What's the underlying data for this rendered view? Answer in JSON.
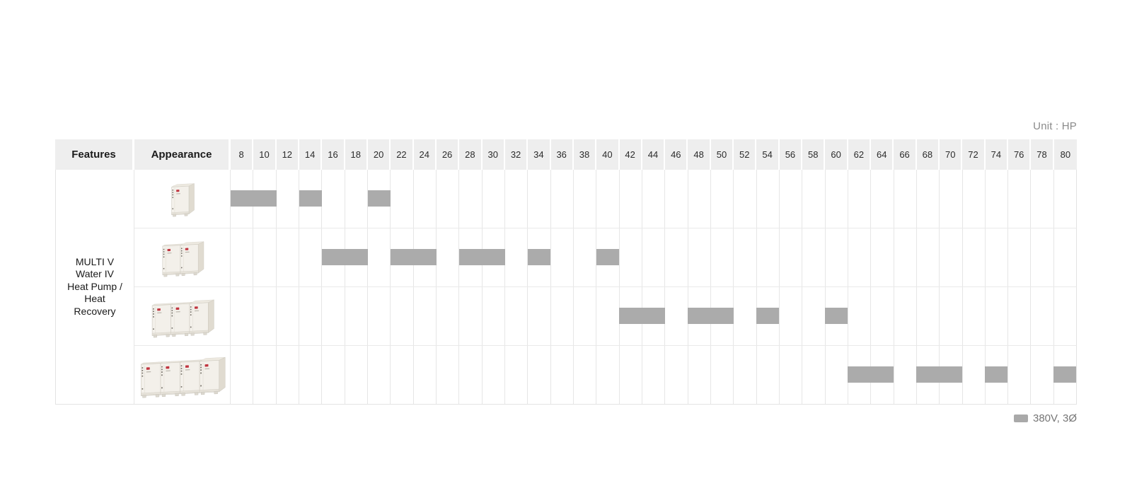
{
  "unit_note": "Unit : HP",
  "colors": {
    "bar": "#ababab",
    "header_bg": "#eeeeee",
    "grid_line": "#e6e6e6",
    "legend_swatch": "#a9a9a9",
    "lg_logo_red": "#c03540"
  },
  "legend": {
    "label": "380V, 3Ø",
    "swatch_color": "#a9a9a9"
  },
  "table": {
    "features_header": "Features",
    "appearance_header": "Appearance",
    "feature_group_label": "MULTI V\nWater IV\nHeat Pump /\nHeat\nRecovery",
    "hp_columns": [
      8,
      10,
      12,
      14,
      16,
      18,
      20,
      22,
      24,
      26,
      28,
      30,
      32,
      34,
      36,
      38,
      40,
      42,
      44,
      46,
      48,
      50,
      52,
      54,
      56,
      58,
      60,
      62,
      64,
      66,
      68,
      70,
      72,
      74,
      76,
      78,
      80
    ],
    "rows": [
      {
        "units": 1,
        "bars": [
          [
            8,
            10
          ],
          [
            14,
            14
          ],
          [
            20,
            20
          ]
        ]
      },
      {
        "units": 2,
        "bars": [
          [
            16,
            18
          ],
          [
            22,
            24
          ],
          [
            28,
            30
          ],
          [
            34,
            34
          ],
          [
            40,
            40
          ]
        ]
      },
      {
        "units": 3,
        "bars": [
          [
            42,
            44
          ],
          [
            48,
            50
          ],
          [
            54,
            54
          ],
          [
            60,
            60
          ]
        ]
      },
      {
        "units": 4,
        "bars": [
          [
            62,
            64
          ],
          [
            68,
            70
          ],
          [
            74,
            74
          ],
          [
            80,
            80
          ]
        ]
      }
    ]
  },
  "chart_data": {
    "type": "table",
    "title": "MULTI V Water IV Heat Pump / Heat Recovery capacity lineup",
    "unit": "HP",
    "unit_note": "Unit : HP",
    "columns_hp": [
      8,
      10,
      12,
      14,
      16,
      18,
      20,
      22,
      24,
      26,
      28,
      30,
      32,
      34,
      36,
      38,
      40,
      42,
      44,
      46,
      48,
      50,
      52,
      54,
      56,
      58,
      60,
      62,
      64,
      66,
      68,
      70,
      72,
      74,
      76,
      78,
      80
    ],
    "row_group_label": "MULTI V Water IV Heat Pump / Heat Recovery",
    "legend": [
      {
        "label": "380V, 3Ø",
        "color": "#ababab"
      }
    ],
    "rows": [
      {
        "appearance_units": 1,
        "hp_ranges": [
          [
            8,
            10
          ],
          [
            14,
            14
          ],
          [
            20,
            20
          ]
        ],
        "hp_values": [
          8,
          10,
          14,
          20
        ]
      },
      {
        "appearance_units": 2,
        "hp_ranges": [
          [
            16,
            18
          ],
          [
            22,
            24
          ],
          [
            28,
            30
          ],
          [
            34,
            34
          ],
          [
            40,
            40
          ]
        ],
        "hp_values": [
          16,
          18,
          22,
          24,
          28,
          30,
          34,
          40
        ]
      },
      {
        "appearance_units": 3,
        "hp_ranges": [
          [
            42,
            44
          ],
          [
            48,
            50
          ],
          [
            54,
            54
          ],
          [
            60,
            60
          ]
        ],
        "hp_values": [
          42,
          44,
          48,
          50,
          54,
          60
        ]
      },
      {
        "appearance_units": 4,
        "hp_ranges": [
          [
            62,
            64
          ],
          [
            68,
            70
          ],
          [
            74,
            74
          ],
          [
            80,
            80
          ]
        ],
        "hp_values": [
          62,
          64,
          68,
          70,
          74,
          80
        ]
      }
    ],
    "layout": {
      "grid": true,
      "bar_color": "#ababab",
      "header_bg": "#eeeeee",
      "legend_position": "bottom-right"
    }
  }
}
